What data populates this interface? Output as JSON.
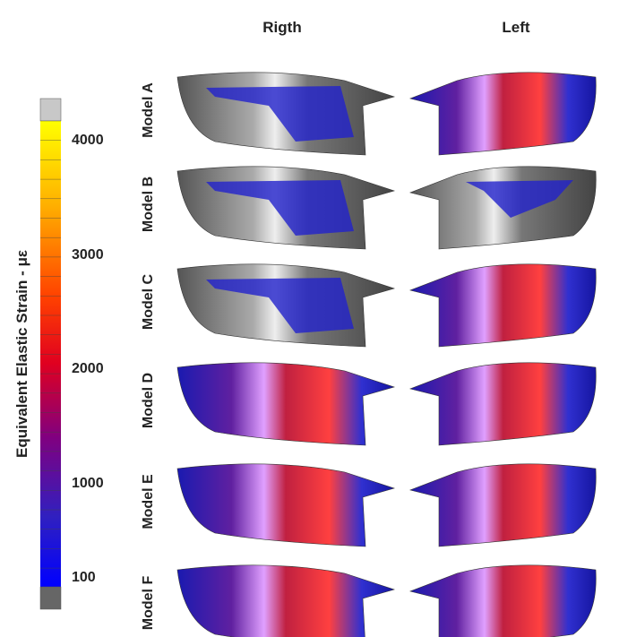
{
  "columns": [
    "Rigth",
    "Left"
  ],
  "rows": [
    "Model A",
    "Model B",
    "Model C",
    "Model D",
    "Model E",
    "Model F"
  ],
  "colorbar": {
    "title": "Equivalent Elastic Strain - με",
    "ticks": [
      "4000",
      "3000",
      "2000",
      "1000",
      "100"
    ]
  }
}
